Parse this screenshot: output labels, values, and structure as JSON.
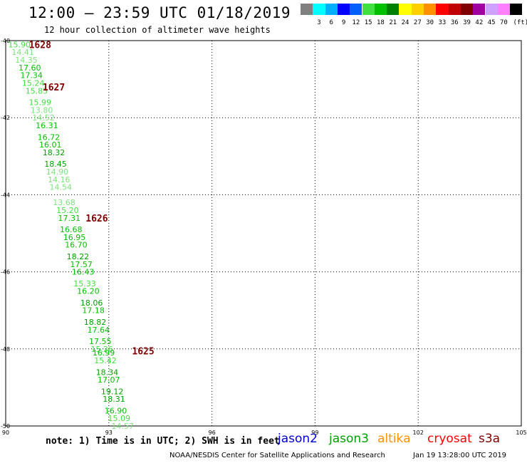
{
  "header": {
    "title": "12:00 – 23:59 UTC 01/18/2019",
    "subtitle": "12 hour collection of altimeter wave heights"
  },
  "legend": {
    "unit": "(ft)",
    "swatches": [
      {
        "label": "",
        "color": "#808080"
      },
      {
        "label": "3",
        "color": "#00ffff"
      },
      {
        "label": "6",
        "color": "#00b0ff"
      },
      {
        "label": "9",
        "color": "#0000ff"
      },
      {
        "label": "12",
        "color": "#0060ff"
      },
      {
        "label": "15",
        "color": "#40e040"
      },
      {
        "label": "18",
        "color": "#00c000"
      },
      {
        "label": "21",
        "color": "#008000"
      },
      {
        "label": "24",
        "color": "#ffff00"
      },
      {
        "label": "27",
        "color": "#ffd000"
      },
      {
        "label": "30",
        "color": "#ff9000"
      },
      {
        "label": "33",
        "color": "#ff0000"
      },
      {
        "label": "36",
        "color": "#c00000"
      },
      {
        "label": "39",
        "color": "#800000"
      },
      {
        "label": "42",
        "color": "#a000a0"
      },
      {
        "label": "45",
        "color": "#d0a0ff"
      },
      {
        "label": "70",
        "color": "#ff80ff"
      },
      {
        "label": "",
        "color": "#000000"
      }
    ]
  },
  "chart_data": {
    "type": "scatter",
    "xlim": [
      90,
      105
    ],
    "ylim": [
      -50,
      -40
    ],
    "x_ticks": [
      "90",
      "93",
      "96",
      "99",
      "102",
      "105"
    ],
    "y_ticks": [
      "-40",
      "-42",
      "-44",
      "-46",
      "-48",
      "-50"
    ],
    "grid": true,
    "points": [
      {
        "lon": 90.4,
        "lat": -40.1,
        "swh": "15.90",
        "color": "#40e040"
      },
      {
        "lon": 90.5,
        "lat": -40.3,
        "swh": "14.41",
        "color": "#80e080"
      },
      {
        "lon": 90.6,
        "lat": -40.5,
        "swh": "14.35",
        "color": "#80e080"
      },
      {
        "lon": 90.7,
        "lat": -40.7,
        "swh": "17.60",
        "color": "#00c000"
      },
      {
        "lon": 90.75,
        "lat": -40.9,
        "swh": "17.34",
        "color": "#00c000"
      },
      {
        "lon": 90.8,
        "lat": -41.1,
        "swh": "15.24",
        "color": "#40e040"
      },
      {
        "lon": 90.9,
        "lat": -41.3,
        "swh": "15.85",
        "color": "#40e040"
      },
      {
        "lon": 91.0,
        "lat": -41.6,
        "swh": "15.99",
        "color": "#40e040"
      },
      {
        "lon": 91.05,
        "lat": -41.8,
        "swh": "13.80",
        "color": "#80e080"
      },
      {
        "lon": 91.1,
        "lat": -42.0,
        "swh": "14.52",
        "color": "#80e080"
      },
      {
        "lon": 91.2,
        "lat": -42.2,
        "swh": "16.31",
        "color": "#00c000"
      },
      {
        "lon": 91.25,
        "lat": -42.5,
        "swh": "16.72",
        "color": "#00c000"
      },
      {
        "lon": 91.3,
        "lat": -42.7,
        "swh": "16.01",
        "color": "#00c000"
      },
      {
        "lon": 91.4,
        "lat": -42.9,
        "swh": "18.32",
        "color": "#00a000"
      },
      {
        "lon": 91.45,
        "lat": -43.2,
        "swh": "18.45",
        "color": "#00a000"
      },
      {
        "lon": 91.5,
        "lat": -43.4,
        "swh": "14.90",
        "color": "#80e080"
      },
      {
        "lon": 91.55,
        "lat": -43.6,
        "swh": "14.16",
        "color": "#80e080"
      },
      {
        "lon": 91.6,
        "lat": -43.8,
        "swh": "14.54",
        "color": "#80e080"
      },
      {
        "lon": 91.7,
        "lat": -44.2,
        "swh": "13.68",
        "color": "#80e080"
      },
      {
        "lon": 91.8,
        "lat": -44.4,
        "swh": "15.20",
        "color": "#40e040"
      },
      {
        "lon": 91.85,
        "lat": -44.6,
        "swh": "17.31",
        "color": "#00c000"
      },
      {
        "lon": 91.9,
        "lat": -44.9,
        "swh": "16.68",
        "color": "#00c000"
      },
      {
        "lon": 92.0,
        "lat": -45.1,
        "swh": "16.95",
        "color": "#00c000"
      },
      {
        "lon": 92.05,
        "lat": -45.3,
        "swh": "16.70",
        "color": "#00c000"
      },
      {
        "lon": 92.1,
        "lat": -45.6,
        "swh": "18.22",
        "color": "#00a000"
      },
      {
        "lon": 92.2,
        "lat": -45.8,
        "swh": "17.57",
        "color": "#00c000"
      },
      {
        "lon": 92.25,
        "lat": -46.0,
        "swh": "16.43",
        "color": "#00c000"
      },
      {
        "lon": 92.3,
        "lat": -46.3,
        "swh": "15.33",
        "color": "#40e040"
      },
      {
        "lon": 92.4,
        "lat": -46.5,
        "swh": "16.20",
        "color": "#00c000"
      },
      {
        "lon": 92.5,
        "lat": -46.8,
        "swh": "18.06",
        "color": "#00a000"
      },
      {
        "lon": 92.55,
        "lat": -47.0,
        "swh": "17.18",
        "color": "#00c000"
      },
      {
        "lon": 92.6,
        "lat": -47.3,
        "swh": "18.82",
        "color": "#00a000"
      },
      {
        "lon": 92.7,
        "lat": -47.5,
        "swh": "17.64",
        "color": "#00c000"
      },
      {
        "lon": 92.75,
        "lat": -47.8,
        "swh": "17.55",
        "color": "#00c000"
      },
      {
        "lon": 92.8,
        "lat": -48.0,
        "swh": "15.26",
        "color": "#40e040"
      },
      {
        "lon": 92.85,
        "lat": -48.1,
        "swh": "16.99",
        "color": "#00c000"
      },
      {
        "lon": 92.9,
        "lat": -48.3,
        "swh": "15.42",
        "color": "#40e040"
      },
      {
        "lon": 92.95,
        "lat": -48.6,
        "swh": "18.34",
        "color": "#00a000"
      },
      {
        "lon": 93.0,
        "lat": -48.8,
        "swh": "17.07",
        "color": "#00c000"
      },
      {
        "lon": 93.1,
        "lat": -49.1,
        "swh": "19.12",
        "color": "#00a000"
      },
      {
        "lon": 93.15,
        "lat": -49.3,
        "swh": "18.31",
        "color": "#00a000"
      },
      {
        "lon": 93.2,
        "lat": -49.6,
        "swh": "16.90",
        "color": "#00c000"
      },
      {
        "lon": 93.3,
        "lat": -49.8,
        "swh": "15.09",
        "color": "#40e040"
      },
      {
        "lon": 93.4,
        "lat": -50.0,
        "swh": "14.57",
        "color": "#80e080"
      }
    ],
    "time_labels": [
      {
        "lon": 91.0,
        "lat": -40.1,
        "text": "1628",
        "color": "#800000"
      },
      {
        "lon": 91.4,
        "lat": -41.2,
        "text": "1627",
        "color": "#800000"
      },
      {
        "lon": 92.65,
        "lat": -44.6,
        "text": "1626",
        "color": "#800000"
      },
      {
        "lon": 94.0,
        "lat": -48.05,
        "text": "1625",
        "color": "#800000"
      }
    ]
  },
  "footer": {
    "note": "note: 1) Time is in UTC; 2) SWH is in feet",
    "satellites": [
      {
        "name": "jason2",
        "color": "#0000cc"
      },
      {
        "name": "jason3",
        "color": "#00a000"
      },
      {
        "name": "altika",
        "color": "#ff9000"
      },
      {
        "name": "cryosat",
        "color": "#ff0000"
      },
      {
        "name": "s3a",
        "color": "#800000"
      }
    ],
    "credit": "NOAA/NESDIS Center for Satellite Applications and Research",
    "timestamp": "Jan 19 13:28:00 UTC 2019"
  }
}
